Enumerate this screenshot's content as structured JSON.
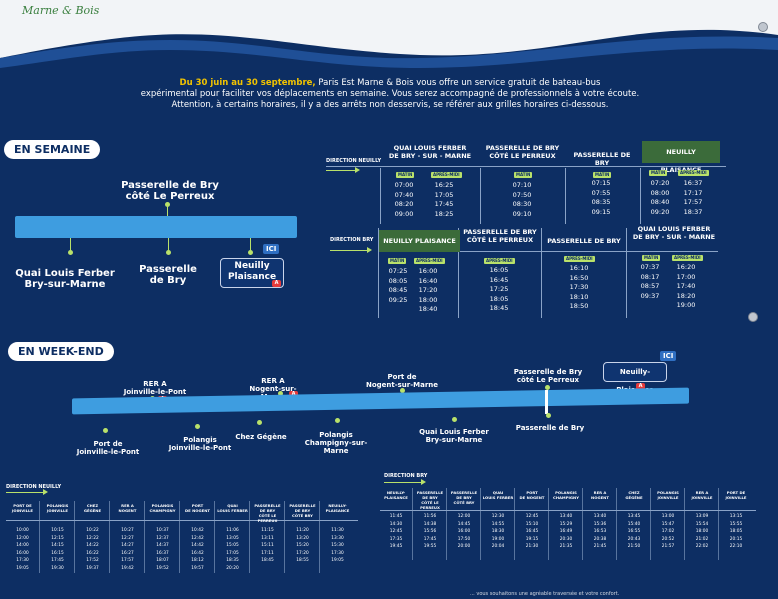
{
  "header": {
    "logo_text": "Marne & Bois"
  },
  "intro": {
    "line1_highlight": "Du 30 juin au 30 septembre,",
    "line1_rest": " Paris Est Marne & Bois vous offre un service gratuit de bateau-bus",
    "line2": "expérimental pour faciliter vos déplacements en semaine. Vous serez accompagné de professionnels à votre écoute.",
    "line3": "Attention, à certains horaires, il y a des arrêts non desservis, se référer aux grilles horaires ci-dessous."
  },
  "weekday": {
    "pill": "EN SEMAINE",
    "stops": {
      "passerelle_bry_top": "Passerelle de Bry\ncôté Le Perreux",
      "quai_louis": "Quai Louis Ferber\nBry-sur-Marne",
      "passerelle_bry": "Passerelle\nde Bry",
      "neuilly": "Neuilly\nPlaisance",
      "ici": "ICI"
    },
    "direction_neuilly": "DIRECTION NEUILLY",
    "direction_bry": "DIRECTION BRY",
    "matin": "MATIN",
    "apres_midi": "APRÈS-MIDI",
    "table1": {
      "columns": [
        "QUAI LOUIS FERBER\nDE BRY - SUR - MARNE",
        "PASSERELLE DE BRY\nCÔTÉ LE PERREUX",
        "PASSERELLE DE BRY",
        "NEUILLY PLAISANCE"
      ],
      "col1_matin": "07:00\n07:40\n08:20\n09:00",
      "col1_am": "16:25\n17:05\n17:45\n18:25",
      "col2_matin": "07:10\n07:50\n08:30\n09:10",
      "col3_matin": "07:15\n07:55\n08:35\n09:15",
      "col4_matin": "07:20\n08:00\n08:40\n09:20",
      "col4_am": "16:37\n17:17\n17:57\n18:37"
    },
    "table2": {
      "columns": [
        "NEUILLY PLAISANCE",
        "PASSERELLE DE BRY\nCÔTÉ LE PERREUX",
        "PASSERELLE DE BRY",
        "QUAI LOUIS FERBER\nDE BRY - SUR - MARNE"
      ],
      "col1_matin": "07:25\n08:05\n08:45\n09:25",
      "col1_am": "16:00\n16:40\n17:20\n18:00\n18:40",
      "col2_am": "16:05\n16:45\n17:25\n18:05\n18:45",
      "col3_am": "16:10\n16:50\n17:30\n18:10\n18:50",
      "col4_matin": "07:37\n08:17\n08:57\n09:37",
      "col4_am": "16:20\n17:00\n17:40\n18:20\n19:00"
    }
  },
  "weekend": {
    "pill": "EN WEEK-END",
    "stops_top": {
      "rer_joinville": "RER A\nJoinville-le-Pont",
      "rer_nogent": "RER A\nNogent-sur-Marne",
      "port_nogent": "Port de\nNogent-sur-Marne",
      "passerelle_perreux": "Passerelle de Bry\ncôté Le Perreux",
      "neuilly": "Neuilly-Plaisance",
      "ici": "ICI"
    },
    "stops_bottom": {
      "port_joinville": "Port de\nJoinville-le-Pont",
      "polangis_joinville": "Polangis\nJoinville-le-Pont",
      "chez_gegene": "Chez Gégène",
      "polangis_champigny": "Polangis\nChampigny-sur-Marne",
      "quai_louis": "Quai Louis Ferber\nBry-sur-Marne",
      "passerelle_bry": "Passerelle de Bry"
    },
    "direction_neuilly": "DIRECTION NEUILLY",
    "direction_bry": "DIRECTION BRY",
    "table_left": {
      "columns": [
        "PORT DE\nJOINVILLE",
        "POLANGIS\nJOINVILLE",
        "CHEZ\nGÉGÈNE",
        "RER A\nNOGENT",
        "POLANGIS\nCHAMPIGNY",
        "PORT\nDE NOGENT",
        "QUAI\nLOUIS FERBER",
        "PASSERELLE DE BRY\nCÔTÉ LE PERREUX",
        "PASSERELLE DE BRY\nCÔTÉ BRY",
        "NEUILLY-\nPLAISANCE"
      ],
      "values": [
        "10:00\n12:00\n14:00\n16:00\n17:30\n19:05",
        "10:15\n12:15\n14:15\n16:15\n17:45\n19:30",
        "10:22\n12:22\n14:22\n16:22\n17:52\n19:37",
        "10:27\n12:27\n14:27\n16:27\n17:57\n19:42",
        "10:37\n12:37\n14:37\n16:37\n18:07\n19:52",
        "10:42\n12:42\n14:42\n16:42\n18:12\n19:57",
        "11:06\n13:05\n15:05\n17:05\n18:35\n20:20",
        "11:15\n13:11\n15:11\n17:11\n18:45",
        "11:20\n13:20\n15:20\n17:20\n18:55",
        "11:30\n13:30\n15:30\n17:30\n19:05"
      ]
    },
    "table_right": {
      "columns": [
        "NEUILLY-\nPLAISANCE",
        "PASSERELLE DE BRY\nCÔTÉ LE PERREUX",
        "PASSERELLE DE BRY\nCÔTÉ BRY",
        "QUAI\nLOUIS FERBER",
        "PORT\nDE NOGENT",
        "POLANGIS\nCHAMPIGNY",
        "RER A\nNOGENT",
        "CHEZ\nGÉGÈNE",
        "POLANGIS\nJOINVILLE",
        "RER A\nJOINVILLE",
        "PORT DE\nJOINVILLE"
      ],
      "values": [
        "11:45\n14:30\n12:45\n17:35\n19:45",
        "11:56\n14:38\n15:56\n17:45\n19:55",
        "12:00\n14:45\n16:00\n17:50\n20:00",
        "12:30\n14:55\n18:30\n19:00\n20:04",
        "12:45\n15:10\n16:45\n19:15\n21:30",
        "13:40\n15:29\n16:49\n20:30\n21:35",
        "13:40\n15:36\n16:53\n20:38\n21:45",
        "13:45\n15:40\n16:55\n20:43\n21:50",
        "13:00\n15:47\n17:02\n20:52\n21:57",
        "13:09\n15:54\n18:00\n21:02\n22:02",
        "13:15\n15:55\n18:05\n20:15\n22:10"
      ]
    }
  },
  "footer": {
    "text": "... vous souhaitons une agréable traversée et votre confort."
  }
}
